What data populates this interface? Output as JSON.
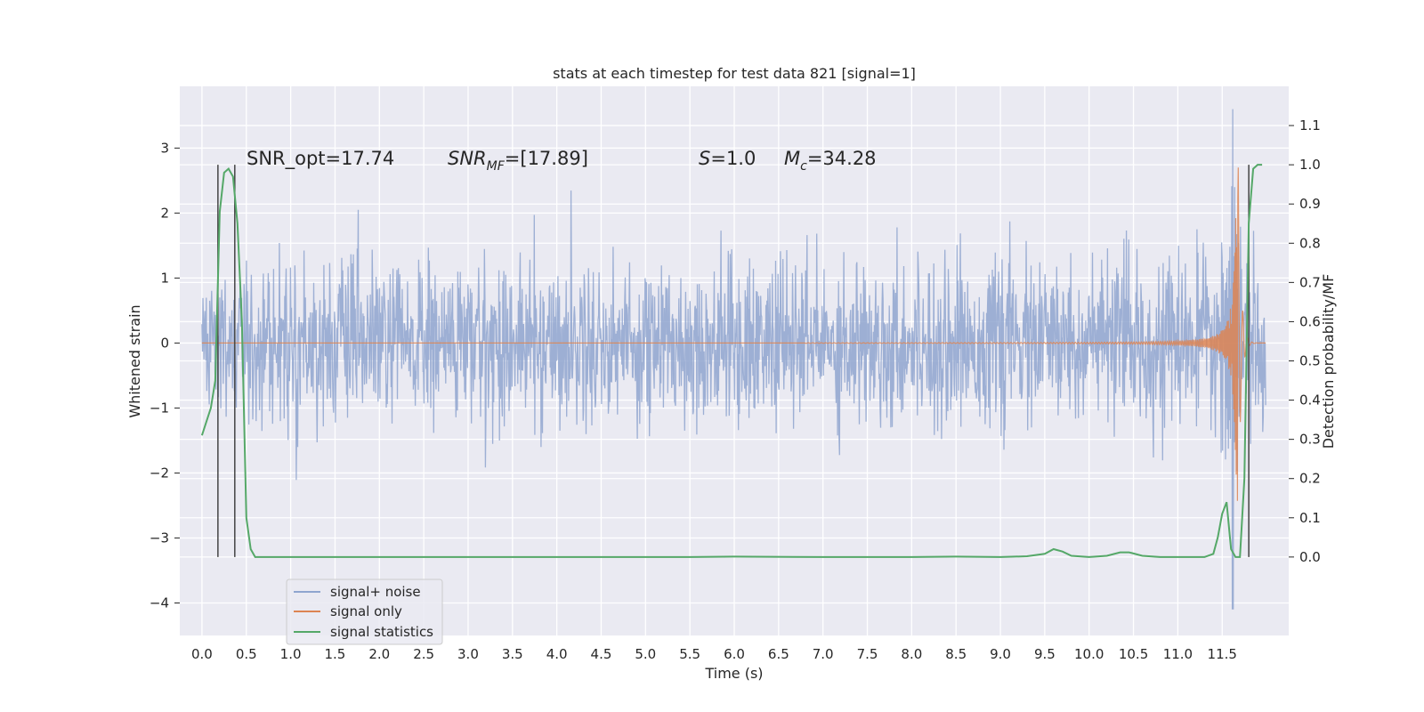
{
  "chart_data": {
    "type": "line",
    "title": "stats at each timestep for test data 821 [signal=1]",
    "xlabel": "Time (s)",
    "ylabel_left": "Whitened strain",
    "ylabel_right": "Detection probability/MF",
    "xlim": [
      -0.25,
      12.25
    ],
    "ylim_left": [
      -4.5,
      3.95
    ],
    "ylim_right": [
      -0.2,
      1.2
    ],
    "x_ticks": [
      0.0,
      0.5,
      1.0,
      1.5,
      2.0,
      2.5,
      3.0,
      3.5,
      4.0,
      4.5,
      5.0,
      5.5,
      6.0,
      6.5,
      7.0,
      7.5,
      8.0,
      8.5,
      9.0,
      9.5,
      10.0,
      10.5,
      11.0,
      11.5
    ],
    "x_tick_labels": [
      "0.0",
      "0.5",
      "1.0",
      "1.5",
      "2.0",
      "2.5",
      "3.0",
      "3.5",
      "4.0",
      "4.5",
      "5.0",
      "5.5",
      "6.0",
      "6.5",
      "7.0",
      "7.5",
      "8.0",
      "8.5",
      "9.0",
      "9.5",
      "10.0",
      "10.5",
      "11.0",
      "11.5"
    ],
    "y_ticks_left": [
      -4,
      -3,
      -2,
      -1,
      0,
      1,
      2,
      3
    ],
    "y_tick_labels_left": [
      "−4",
      "−3",
      "−2",
      "−1",
      "0",
      "1",
      "2",
      "3"
    ],
    "y_ticks_right": [
      0.0,
      0.1,
      0.2,
      0.3,
      0.4,
      0.5,
      0.6,
      0.7,
      0.8,
      0.9,
      1.0,
      1.1
    ],
    "y_tick_labels_right": [
      "0.0",
      "0.1",
      "0.2",
      "0.3",
      "0.4",
      "0.5",
      "0.6",
      "0.7",
      "0.8",
      "0.9",
      "1.0",
      "1.1"
    ],
    "grid": true,
    "legend_position": "lower-left",
    "annotations": {
      "snr_opt": "SNR_opt=17.74",
      "snr_mf_main": "SNR",
      "snr_mf_sub": "MF",
      "snr_mf_value": "=[17.89]",
      "s_label": "S",
      "s_value": "=1.0",
      "mc_label": "M",
      "mc_sub": "c",
      "mc_value": "=34.28"
    },
    "vertical_markers_s": [
      0.18,
      0.37,
      11.8
    ],
    "series": [
      {
        "name": "signal+ noise",
        "axis": "left",
        "color": "#8fa5cf",
        "kind": "noise_envelope",
        "x_range": [
          0.0,
          11.99
        ],
        "typical_amplitude": 1.2,
        "peak_positive": 3.6,
        "peak_negative": -4.1,
        "peak_time": 11.62
      },
      {
        "name": "signal only",
        "axis": "left",
        "color": "#dd8452",
        "kind": "chirp",
        "x_range": [
          0.0,
          11.99
        ],
        "merger_time": 11.68,
        "merger_amplitude": 2.8
      },
      {
        "name": "signal statistics",
        "axis": "right",
        "color": "#55a868",
        "x": [
          0.0,
          0.1,
          0.15,
          0.2,
          0.25,
          0.3,
          0.35,
          0.4,
          0.45,
          0.5,
          0.55,
          0.6,
          0.7,
          1.0,
          3.0,
          5.0,
          5.5,
          6.0,
          7.0,
          8.0,
          8.5,
          9.0,
          9.3,
          9.5,
          9.6,
          9.7,
          9.8,
          10.0,
          10.2,
          10.35,
          10.45,
          10.6,
          10.8,
          11.0,
          11.3,
          11.4,
          11.45,
          11.5,
          11.55,
          11.6,
          11.65,
          11.7,
          11.75,
          11.8,
          11.85,
          11.9,
          11.95
        ],
        "values": [
          0.31,
          0.38,
          0.45,
          0.88,
          0.98,
          0.99,
          0.97,
          0.85,
          0.6,
          0.1,
          0.02,
          0.0,
          0.0,
          0.0,
          0.0,
          0.0,
          0.0,
          0.001,
          0.0,
          0.0,
          0.001,
          0.0,
          0.002,
          0.008,
          0.02,
          0.014,
          0.003,
          0.0,
          0.003,
          0.012,
          0.012,
          0.003,
          0.0,
          0.0,
          0.0,
          0.008,
          0.05,
          0.11,
          0.14,
          0.02,
          0.0,
          0.0,
          0.2,
          0.85,
          0.99,
          1.0,
          1.0
        ]
      }
    ]
  }
}
